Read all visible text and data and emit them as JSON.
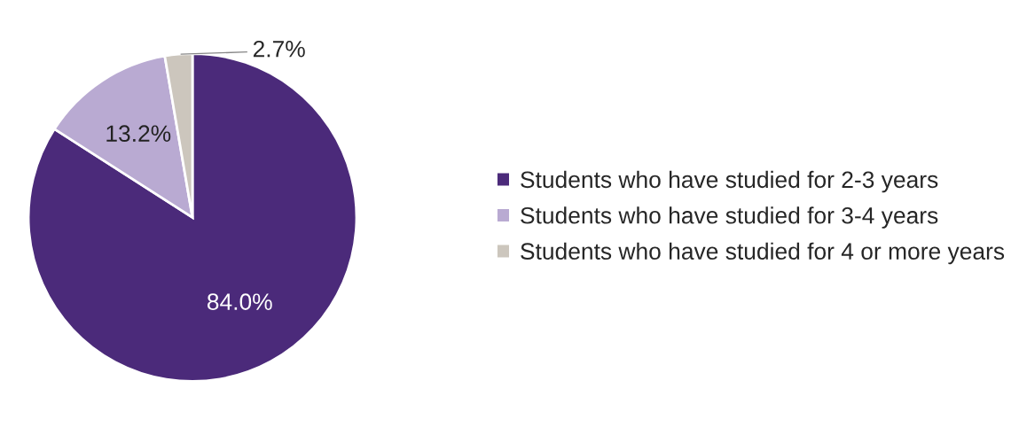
{
  "chart_data": {
    "type": "pie",
    "categories": [
      "Students who have studied for 2-3 years",
      "Students who have studied for 3-4 years",
      "Students who have studied for 4 or more years"
    ],
    "values": [
      84.0,
      13.2,
      2.7
    ],
    "value_labels": [
      "84.0%",
      "13.2%",
      "2.7%"
    ],
    "colors": [
      "#4b2a7a",
      "#b9aad2",
      "#ccc6bd"
    ],
    "legend": "right"
  }
}
